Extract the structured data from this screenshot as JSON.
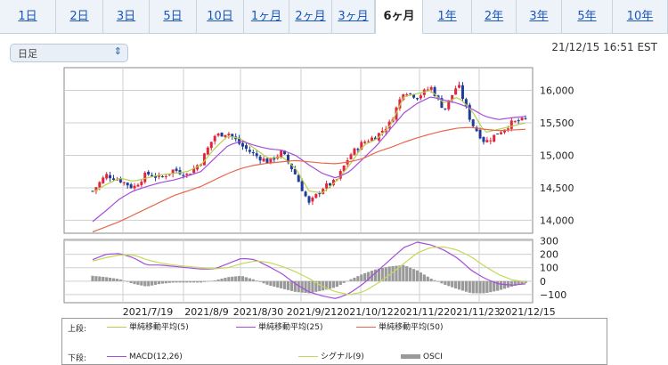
{
  "tabs": [
    {
      "label": "1日",
      "active": false
    },
    {
      "label": "2日",
      "active": false
    },
    {
      "label": "3日",
      "active": false
    },
    {
      "label": "5日",
      "active": false
    },
    {
      "label": "10日",
      "active": false
    },
    {
      "label": "1ヶ月",
      "active": false
    },
    {
      "label": "2ヶ月",
      "active": false
    },
    {
      "label": "3ヶ月",
      "active": false
    },
    {
      "label": "6ヶ月",
      "active": true
    },
    {
      "label": "1年",
      "active": false
    },
    {
      "label": "2年",
      "active": false
    },
    {
      "label": "3年",
      "active": false
    },
    {
      "label": "5年",
      "active": false
    },
    {
      "label": "10年",
      "active": false
    }
  ],
  "period_select": {
    "value": "日足",
    "icon": "up-down-chevron-icon"
  },
  "timestamp": "21/12/15 16:51 EST",
  "legend": {
    "upper_label": "上段:",
    "lower_label": "下段:",
    "upper": [
      {
        "name": "単純移動平均(5)",
        "color": "#b7cf4f"
      },
      {
        "name": "単純移動平均(25)",
        "color": "#a64ddb"
      },
      {
        "name": "単純移動平均(50)",
        "color": "#e8684a"
      }
    ],
    "lower": [
      {
        "name": "MACD(12,26)",
        "color": "#a64ddb"
      },
      {
        "name": "シグナル(9)",
        "color": "#c6d85a"
      },
      {
        "name": "OSCI",
        "color": "#999999"
      }
    ]
  },
  "chart_data": [
    {
      "type": "candlestick",
      "title": "",
      "x_tick_labels": [
        "2021/7/19",
        "2021/8/9",
        "2021/8/30",
        "2021/9/21",
        "2021/10/12",
        "2021/11/2",
        "2021/11/23",
        "2021/12/15"
      ],
      "y_tick_labels": [
        "16,000",
        "15,500",
        "15,000",
        "14,500",
        "14,000"
      ],
      "y_ticks": [
        16000,
        15500,
        15000,
        14500,
        14000
      ],
      "ylim": [
        13800,
        16350
      ],
      "up_color": "#e0263a",
      "down_color": "#1f3c99",
      "grid": true,
      "price_anchors": [
        14450,
        14700,
        14620,
        14500,
        14720,
        14650,
        14780,
        14700,
        14900,
        15300,
        15350,
        15150,
        15000,
        14900,
        15050,
        14700,
        14250,
        14500,
        14600,
        15000,
        15200,
        15300,
        15500,
        16000,
        15900,
        16050,
        15700,
        16100,
        15500,
        15200,
        15350,
        15500,
        15550
      ],
      "series": [
        {
          "name": "単純移動平均(5)",
          "color": "#b7cf4f",
          "values": [
            14430,
            14550,
            14650,
            14600,
            14650,
            14700,
            14720,
            14750,
            14850,
            15100,
            15300,
            15250,
            15100,
            14950,
            14980,
            14800,
            14450,
            14420,
            14600,
            14850,
            15150,
            15250,
            15450,
            15900,
            15950,
            16000,
            15800,
            15900,
            15700,
            15350,
            15400,
            15450,
            15500
          ]
        },
        {
          "name": "単純移動平均(25)",
          "color": "#a64ddb",
          "values": [
            13980,
            14150,
            14330,
            14450,
            14520,
            14580,
            14620,
            14680,
            14750,
            14950,
            15150,
            15220,
            15150,
            15100,
            15080,
            15000,
            14850,
            14720,
            14650,
            14750,
            14950,
            15150,
            15400,
            15650,
            15800,
            15900,
            15850,
            15800,
            15720,
            15600,
            15550,
            15580,
            15600
          ]
        },
        {
          "name": "単純移動平均(50)",
          "color": "#e8684a",
          "values": [
            13820,
            13900,
            13980,
            14080,
            14180,
            14280,
            14380,
            14450,
            14520,
            14620,
            14720,
            14800,
            14850,
            14880,
            14900,
            14920,
            14900,
            14880,
            14870,
            14900,
            14950,
            15050,
            15120,
            15200,
            15270,
            15330,
            15380,
            15420,
            15430,
            15400,
            15380,
            15390,
            15400
          ]
        }
      ]
    },
    {
      "type": "bar+line",
      "title": "",
      "y_tick_labels": [
        "300",
        "200",
        "100",
        "0",
        "−100"
      ],
      "y_ticks": [
        300,
        200,
        100,
        0,
        -100
      ],
      "ylim": [
        -160,
        310
      ],
      "series": [
        {
          "name": "MACD(12,26)",
          "color": "#a64ddb",
          "values": [
            160,
            200,
            205,
            175,
            120,
            120,
            110,
            100,
            90,
            90,
            130,
            170,
            160,
            110,
            55,
            -20,
            -80,
            -110,
            -130,
            -90,
            -20,
            70,
            160,
            250,
            290,
            270,
            230,
            170,
            80,
            20,
            -20,
            -30,
            -20
          ]
        },
        {
          "name": "シグナル(9)",
          "color": "#c6d85a",
          "values": [
            150,
            175,
            195,
            195,
            160,
            135,
            120,
            110,
            100,
            92,
            100,
            130,
            150,
            140,
            110,
            70,
            20,
            -40,
            -80,
            -100,
            -80,
            -20,
            50,
            130,
            210,
            250,
            255,
            230,
            180,
            110,
            50,
            10,
            -5
          ]
        },
        {
          "name": "OSCI",
          "color": "#999999",
          "values": [
            40,
            30,
            15,
            -20,
            -40,
            -20,
            -10,
            -10,
            -10,
            5,
            30,
            40,
            10,
            -30,
            -55,
            -80,
            -90,
            -70,
            -45,
            10,
            55,
            90,
            110,
            120,
            80,
            20,
            -25,
            -60,
            -90,
            -90,
            -70,
            -40,
            -15
          ]
        }
      ]
    }
  ]
}
